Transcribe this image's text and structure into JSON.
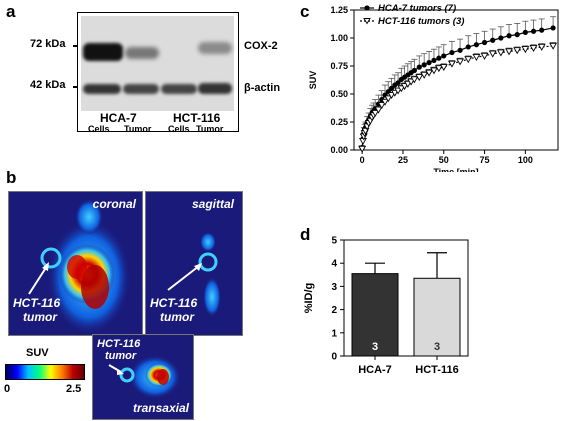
{
  "panels": {
    "a": {
      "letter": "a",
      "markers": [
        "72 kDa",
        "42 kDa"
      ],
      "proteins": [
        "COX-2",
        "β-actin"
      ],
      "groups": [
        "HCA-7",
        "HCT-116"
      ],
      "lanes": [
        "Cells",
        "Tumor",
        "Cells",
        "Tumor"
      ]
    },
    "b": {
      "letter": "b",
      "views": [
        "coronal",
        "sagittal",
        "transaxial"
      ],
      "tumor_label_line1": "HCT-116",
      "tumor_label_line2": "tumor",
      "colorbar": {
        "title": "SUV",
        "min": "0",
        "max": "2.5"
      }
    },
    "c": {
      "letter": "c"
    },
    "d": {
      "letter": "d"
    }
  },
  "chart_data": [
    {
      "type": "line",
      "panel": "c",
      "xlabel": "Time [min]",
      "ylabel": "SUV",
      "xlim": [
        -5,
        120
      ],
      "ylim": [
        0,
        1.25
      ],
      "xticks": [
        "0",
        "25",
        "50",
        "75",
        "100"
      ],
      "yticks": [
        "0.00",
        "0.25",
        "0.50",
        "0.75",
        "1.00",
        "1.25"
      ],
      "x": [
        0,
        0.5,
        1,
        1.5,
        2,
        3,
        4,
        5,
        6,
        7,
        8,
        10,
        12,
        14,
        16,
        18,
        20,
        22,
        24,
        26,
        28,
        30,
        32,
        35,
        38,
        41,
        44,
        47,
        50,
        55,
        60,
        65,
        70,
        75,
        80,
        85,
        90,
        95,
        100,
        105,
        110,
        117
      ],
      "series": [
        {
          "name": "HCA-7 tumors (7)",
          "marker": "filled-circle",
          "line": "solid",
          "values": [
            0.02,
            0.1,
            0.15,
            0.18,
            0.2,
            0.24,
            0.27,
            0.3,
            0.33,
            0.35,
            0.37,
            0.41,
            0.45,
            0.49,
            0.52,
            0.55,
            0.58,
            0.6,
            0.63,
            0.65,
            0.67,
            0.69,
            0.71,
            0.74,
            0.76,
            0.78,
            0.8,
            0.82,
            0.84,
            0.87,
            0.89,
            0.92,
            0.94,
            0.96,
            0.98,
            1.0,
            1.02,
            1.03,
            1.05,
            1.06,
            1.07,
            1.09
          ],
          "errors": [
            0.02,
            0.04,
            0.05,
            0.05,
            0.05,
            0.06,
            0.06,
            0.07,
            0.07,
            0.07,
            0.08,
            0.08,
            0.08,
            0.09,
            0.09,
            0.09,
            0.09,
            0.09,
            0.1,
            0.1,
            0.1,
            0.1,
            0.1,
            0.1,
            0.1,
            0.1,
            0.1,
            0.1,
            0.1,
            0.1,
            0.1,
            0.1,
            0.1,
            0.1,
            0.1,
            0.1,
            0.1,
            0.1,
            0.1,
            0.1,
            0.1,
            0.1
          ]
        },
        {
          "name": "HCT-116 tumors (3)",
          "marker": "open-triangle-down",
          "line": "dotted",
          "values": [
            0.01,
            0.08,
            0.12,
            0.15,
            0.17,
            0.21,
            0.24,
            0.26,
            0.29,
            0.31,
            0.33,
            0.36,
            0.4,
            0.43,
            0.46,
            0.49,
            0.51,
            0.53,
            0.55,
            0.57,
            0.59,
            0.61,
            0.63,
            0.65,
            0.67,
            0.69,
            0.71,
            0.73,
            0.74,
            0.77,
            0.79,
            0.81,
            0.83,
            0.84,
            0.86,
            0.87,
            0.88,
            0.89,
            0.9,
            0.91,
            0.92,
            0.93
          ],
          "errors": [
            0,
            0.01,
            0.01,
            0.02,
            0.02,
            0.02,
            0.02,
            0.02,
            0.02,
            0.02,
            0.02,
            0.02,
            0.02,
            0.02,
            0.02,
            0.02,
            0.02,
            0.02,
            0.03,
            0.03,
            0.03,
            0.03,
            0.03,
            0.03,
            0.03,
            0.03,
            0.03,
            0.03,
            0.03,
            0.03,
            0.03,
            0.03,
            0.03,
            0.03,
            0.03,
            0.03,
            0.03,
            0.03,
            0.03,
            0.03,
            0.03,
            0.03
          ]
        }
      ]
    },
    {
      "type": "bar",
      "panel": "d",
      "categories": [
        "HCA-7",
        "HCT-116"
      ],
      "values": [
        3.55,
        3.35
      ],
      "errors": [
        0.45,
        1.1
      ],
      "n_labels": [
        "3",
        "3"
      ],
      "ylabel": "%ID/g",
      "ylim": [
        0,
        5
      ],
      "yticks": [
        "0",
        "1",
        "2",
        "3",
        "4",
        "5"
      ],
      "colors": [
        "#333333",
        "#d9d9d9"
      ]
    }
  ]
}
